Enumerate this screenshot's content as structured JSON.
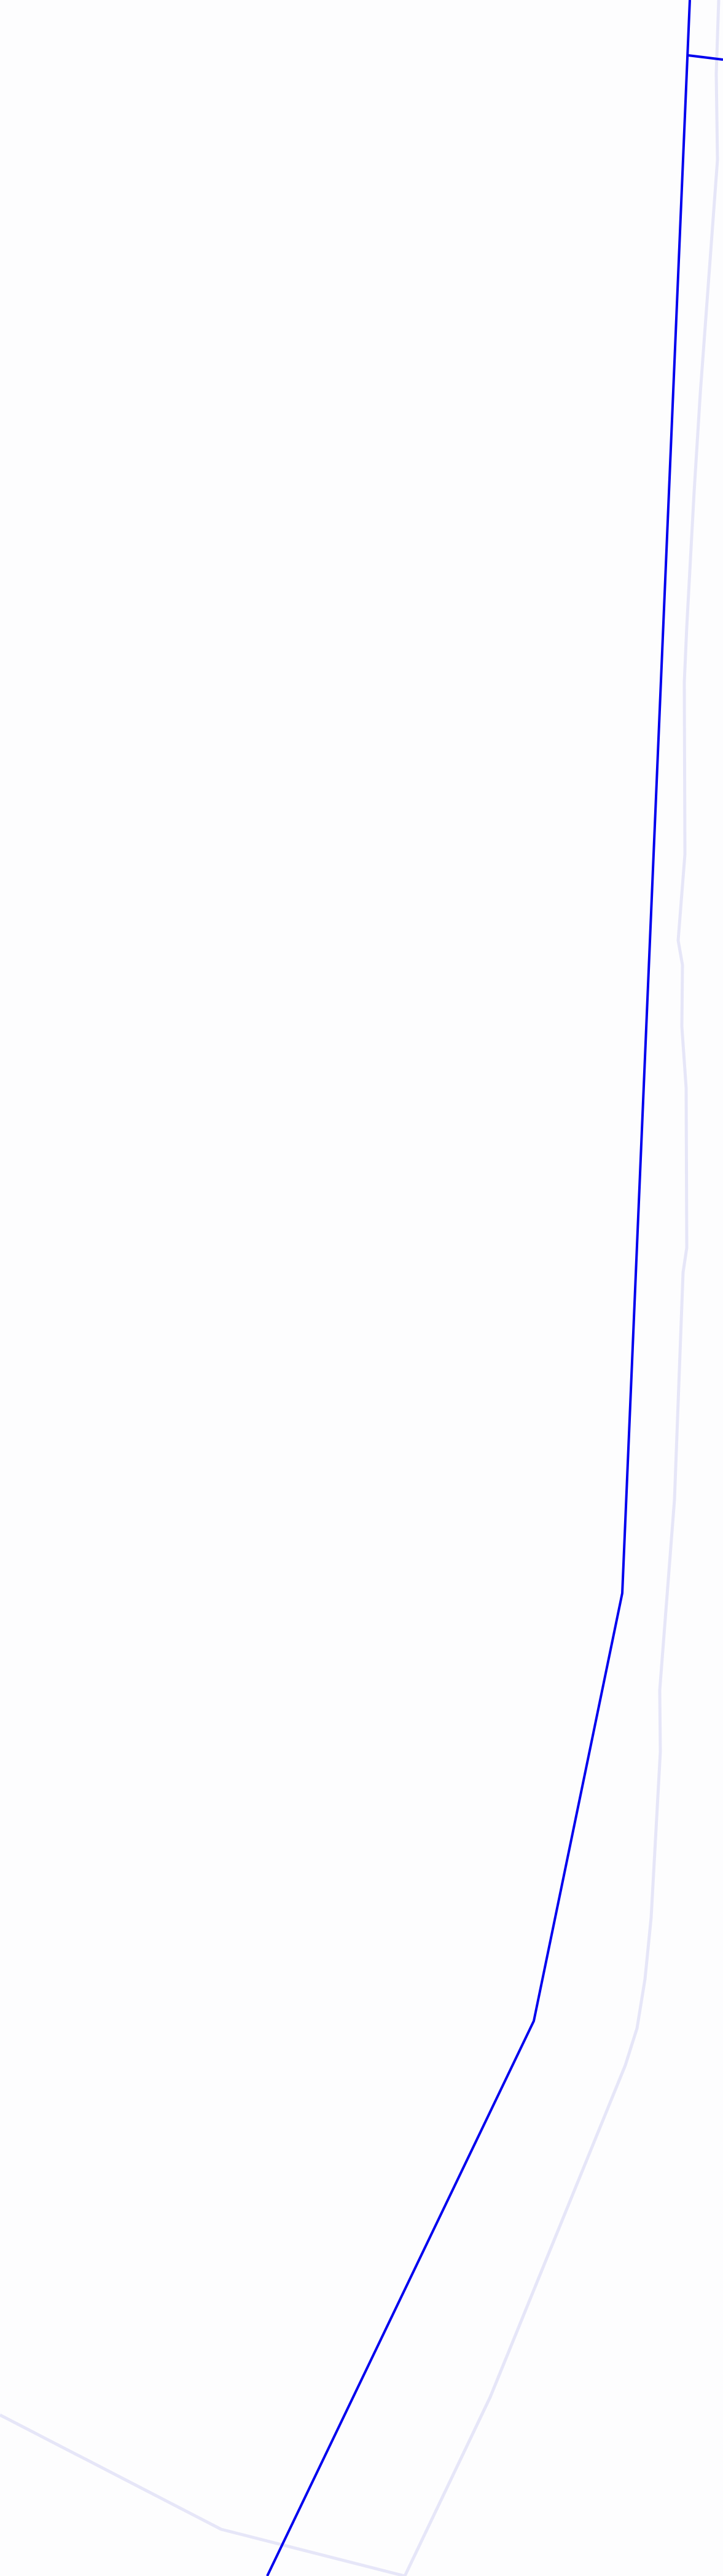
{
  "map": {
    "background_color": "#fdfdfe",
    "features": [
      {
        "name": "route-line",
        "kind": "road",
        "emphasis": "primary",
        "color": "#0000ee"
      },
      {
        "name": "boundary-line",
        "kind": "boundary",
        "emphasis": "secondary",
        "color": "#e6e6f8"
      },
      {
        "name": "boundary-line-lower",
        "kind": "boundary",
        "emphasis": "secondary",
        "color": "#e6e6f8"
      },
      {
        "name": "route-spur",
        "kind": "road",
        "emphasis": "primary",
        "color": "#0000ee"
      }
    ]
  }
}
